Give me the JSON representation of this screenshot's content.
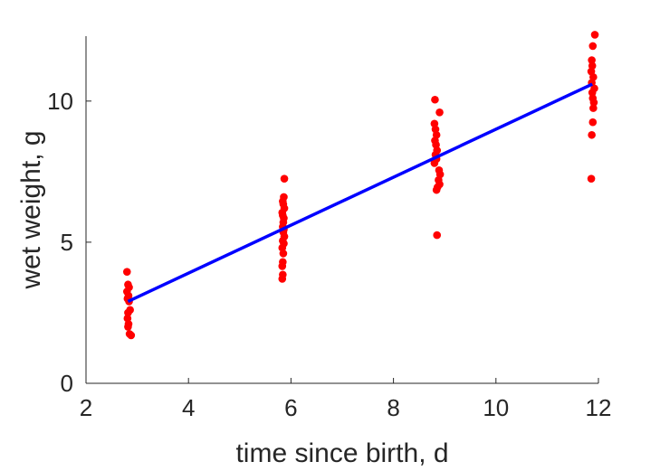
{
  "chart_data": {
    "type": "scatter",
    "title": "",
    "xlabel": "time since birth, d",
    "ylabel": "wet weight, g",
    "xlim": [
      2,
      12
    ],
    "ylim": [
      0,
      12.3
    ],
    "xticks": [
      2,
      4,
      6,
      8,
      10,
      12
    ],
    "yticks": [
      0,
      5,
      10
    ],
    "grid": false,
    "legend": "none",
    "series": [
      {
        "kind": "points",
        "color": "#ff0000",
        "points": [
          [
            2.8,
            3.95
          ],
          [
            2.82,
            3.5
          ],
          [
            2.84,
            3.4
          ],
          [
            2.8,
            3.25
          ],
          [
            2.83,
            3.1
          ],
          [
            2.81,
            3.0
          ],
          [
            2.84,
            2.9
          ],
          [
            2.86,
            2.6
          ],
          [
            2.82,
            2.5
          ],
          [
            2.81,
            2.3
          ],
          [
            2.83,
            2.1
          ],
          [
            2.82,
            2.0
          ],
          [
            2.85,
            1.75
          ],
          [
            2.88,
            1.7
          ],
          [
            5.87,
            7.25
          ],
          [
            5.86,
            6.6
          ],
          [
            5.84,
            6.45
          ],
          [
            5.85,
            6.35
          ],
          [
            5.87,
            6.2
          ],
          [
            5.83,
            6.05
          ],
          [
            5.84,
            5.95
          ],
          [
            5.86,
            5.85
          ],
          [
            5.85,
            5.7
          ],
          [
            5.84,
            5.55
          ],
          [
            5.86,
            5.45
          ],
          [
            5.85,
            5.35
          ],
          [
            5.87,
            5.2
          ],
          [
            5.84,
            5.05
          ],
          [
            5.86,
            4.95
          ],
          [
            5.83,
            4.8
          ],
          [
            5.85,
            4.6
          ],
          [
            5.84,
            4.3
          ],
          [
            5.83,
            4.15
          ],
          [
            5.84,
            3.85
          ],
          [
            5.83,
            3.7
          ],
          [
            8.81,
            10.05
          ],
          [
            8.8,
            9.2
          ],
          [
            8.82,
            9.0
          ],
          [
            8.84,
            8.8
          ],
          [
            8.81,
            8.6
          ],
          [
            8.83,
            8.45
          ],
          [
            8.85,
            8.25
          ],
          [
            8.82,
            8.1
          ],
          [
            8.84,
            7.95
          ],
          [
            8.8,
            7.8
          ],
          [
            8.9,
            9.6
          ],
          [
            8.89,
            7.55
          ],
          [
            8.91,
            7.4
          ],
          [
            8.88,
            7.2
          ],
          [
            8.9,
            7.05
          ],
          [
            8.86,
            6.95
          ],
          [
            8.84,
            6.85
          ],
          [
            8.85,
            5.25
          ],
          [
            11.93,
            12.35
          ],
          [
            11.89,
            11.95
          ],
          [
            11.87,
            11.45
          ],
          [
            11.88,
            11.25
          ],
          [
            11.86,
            11.05
          ],
          [
            11.9,
            10.85
          ],
          [
            11.87,
            10.65
          ],
          [
            11.92,
            10.45
          ],
          [
            11.88,
            10.3
          ],
          [
            11.89,
            10.1
          ],
          [
            11.91,
            9.95
          ],
          [
            11.9,
            9.75
          ],
          [
            11.89,
            9.25
          ],
          [
            11.87,
            8.8
          ],
          [
            11.86,
            7.25
          ]
        ]
      },
      {
        "kind": "line",
        "color": "#0000ff",
        "points": [
          [
            2.82,
            2.9
          ],
          [
            11.88,
            10.6
          ]
        ]
      }
    ]
  }
}
